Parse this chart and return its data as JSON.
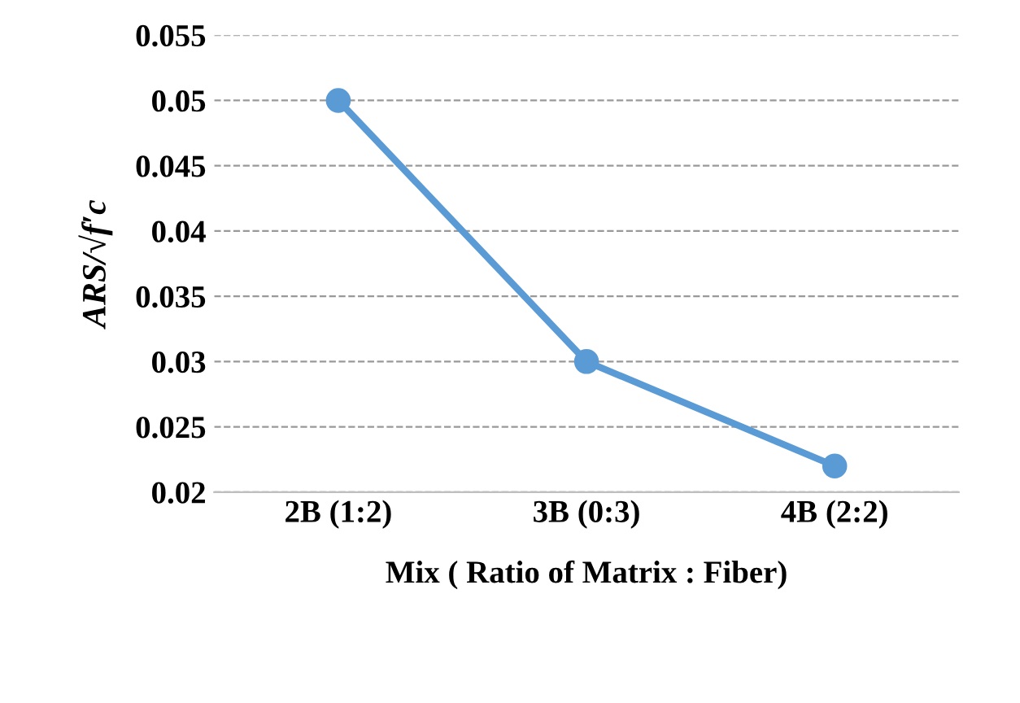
{
  "chart_data": {
    "type": "line",
    "xlabel": "Mix ( Ratio of Matrix : Fiber)",
    "ylabel": "ARS/√f′c",
    "categories": [
      "2B (1:2)",
      "3B (0:3)",
      "4B (2:2)"
    ],
    "series": [
      {
        "color": "#5b9bd5",
        "values": [
          0.05,
          0.03,
          0.022
        ]
      }
    ],
    "ylim": [
      0.02,
      0.055
    ],
    "yticks": [
      0.02,
      0.025,
      0.03,
      0.035,
      0.04,
      0.045,
      0.05,
      0.055
    ],
    "grid": "y",
    "marker": "circle",
    "line_style": "solid",
    "legend": false
  }
}
